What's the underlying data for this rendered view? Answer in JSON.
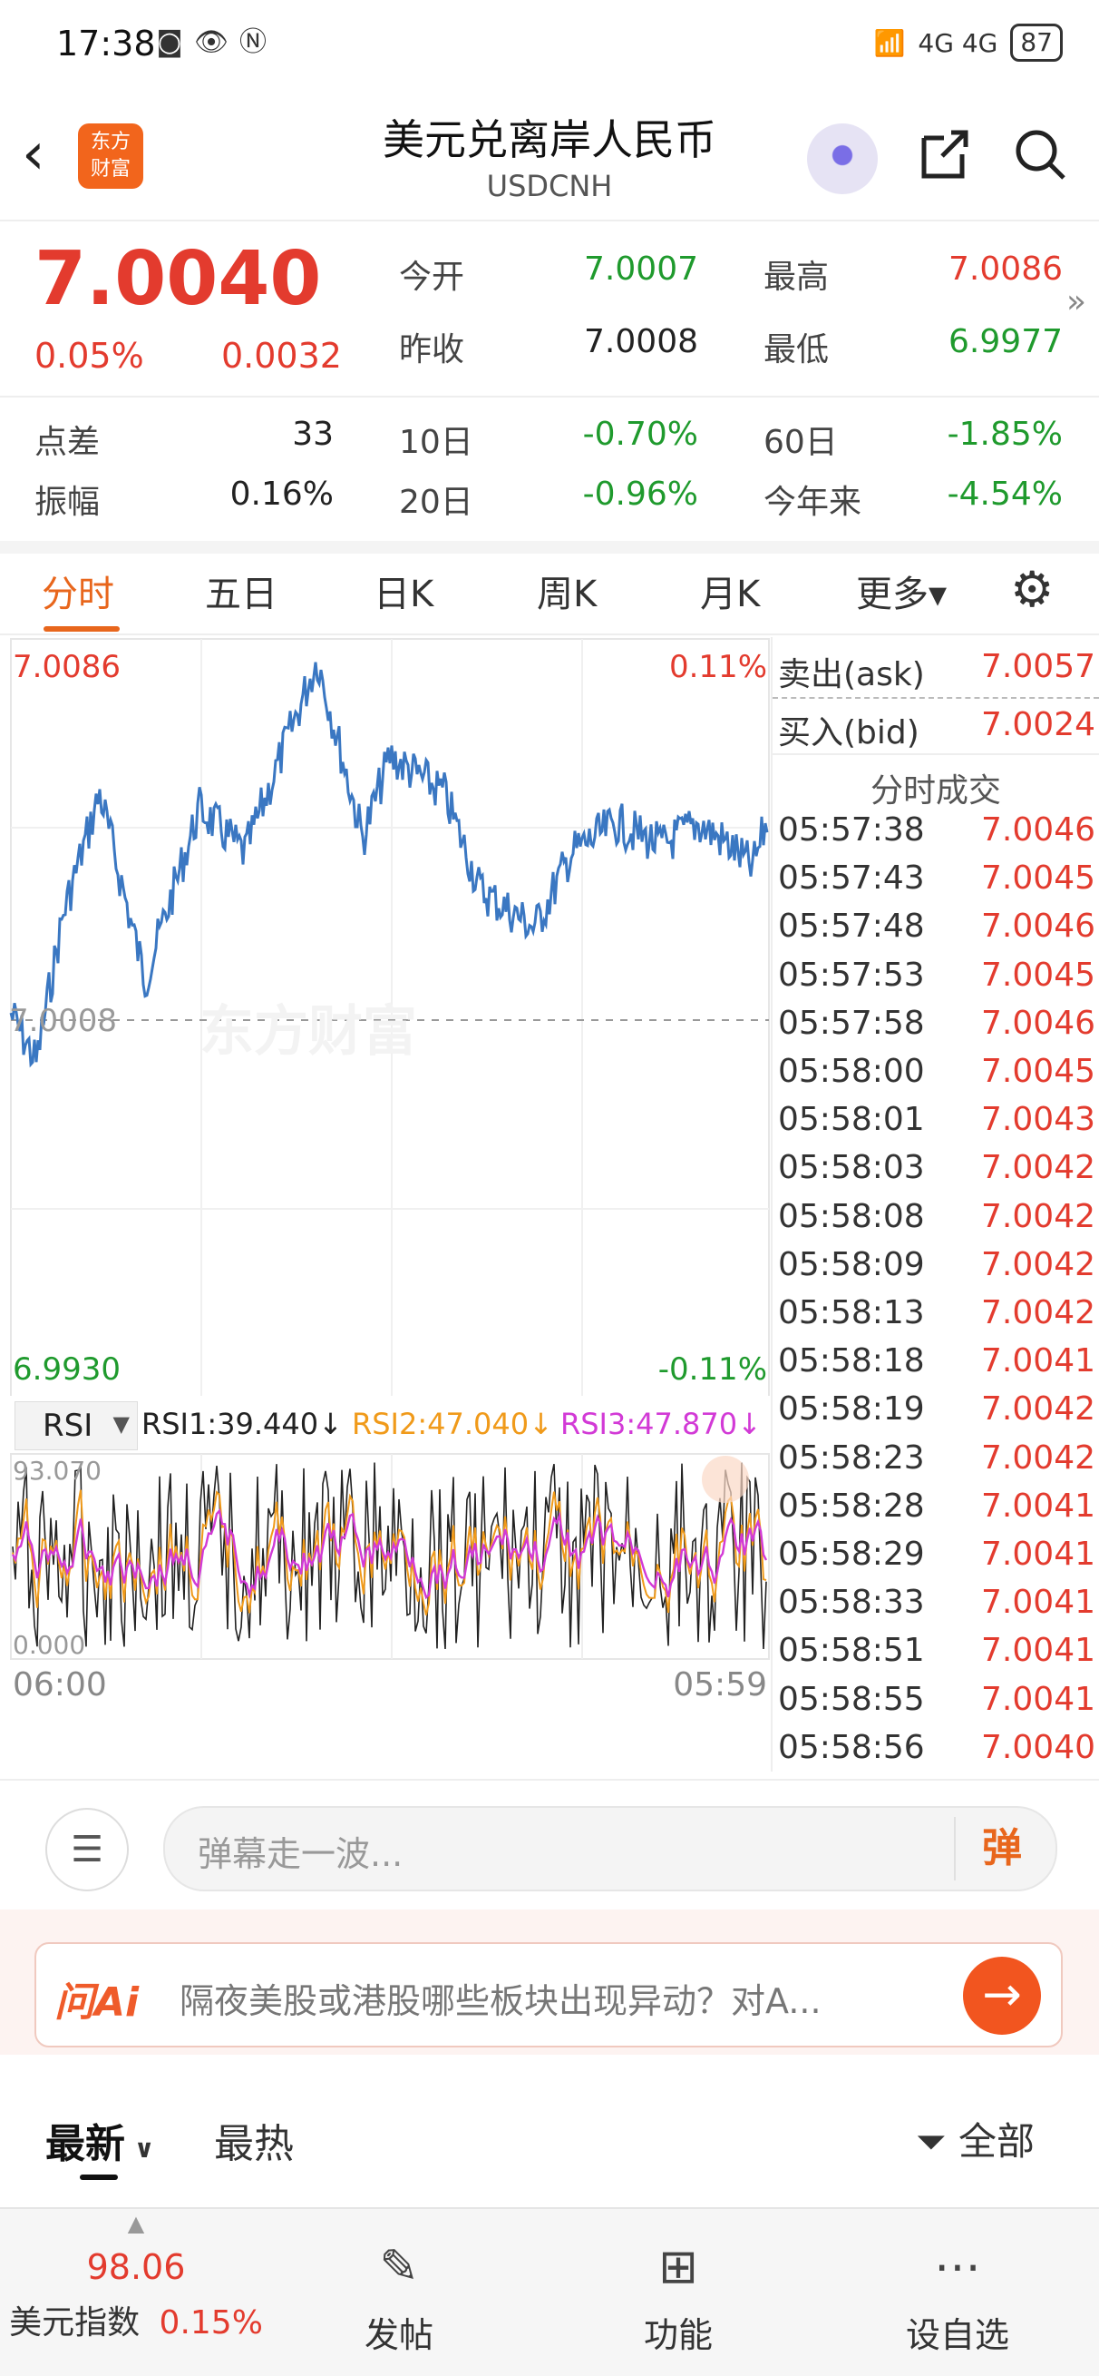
{
  "status_bar": {
    "time": "17:38",
    "battery": "87",
    "signal_text": "4G 4G"
  },
  "header": {
    "title": "美元兑离岸人民币",
    "subtitle": "USDCNH",
    "logo_text_line1": "东方",
    "logo_text_line2": "财富"
  },
  "quote": {
    "price": "7.0040",
    "change_pct": "0.05%",
    "change": "0.0032",
    "open_label": "今开",
    "open": "7.0007",
    "high_label": "最高",
    "high": "7.0086",
    "prev_close_label": "昨收",
    "prev_close": "7.0008",
    "low_label": "最低",
    "low": "6.9977"
  },
  "stats": {
    "spread_label": "点差",
    "spread": "33",
    "d10_label": "10日",
    "d10": "-0.70%",
    "d60_label": "60日",
    "d60": "-1.85%",
    "amp_label": "振幅",
    "amp": "0.16%",
    "d20_label": "20日",
    "d20": "-0.96%",
    "ytd_label": "今年来",
    "ytd": "-4.54%"
  },
  "tabs": [
    "分时",
    "五日",
    "日K",
    "周K",
    "月K",
    "更多▾"
  ],
  "chart": {
    "high_label": "7.0086",
    "high_pct": "0.11%",
    "mid_label": "7.0008",
    "low_label": "6.9930",
    "low_pct": "-0.11%",
    "watermark": "东方财富",
    "indicator": "RSI",
    "rsi1": "RSI1:39.440↓",
    "rsi2": "RSI2:47.040↓",
    "rsi3": "RSI3:47.870↓",
    "rsi_max": "93.070",
    "rsi_min": "0.000",
    "start_time": "06:00",
    "end_time": "05:59",
    "colors": {
      "price": "#3a77c2",
      "rsi1": "#222222",
      "rsi2": "#f09a1a",
      "rsi3": "#d23ad6"
    }
  },
  "orderbook": {
    "ask_label": "卖出(ask)",
    "ask": "7.0057",
    "bid_label": "买入(bid)",
    "bid": "7.0024",
    "trades_title": "分时成交",
    "trades": [
      {
        "time": "05:57:38",
        "price": "7.0046"
      },
      {
        "time": "05:57:43",
        "price": "7.0045"
      },
      {
        "time": "05:57:48",
        "price": "7.0046"
      },
      {
        "time": "05:57:53",
        "price": "7.0045"
      },
      {
        "time": "05:57:58",
        "price": "7.0046"
      },
      {
        "time": "05:58:00",
        "price": "7.0045"
      },
      {
        "time": "05:58:01",
        "price": "7.0043"
      },
      {
        "time": "05:58:03",
        "price": "7.0042"
      },
      {
        "time": "05:58:08",
        "price": "7.0042"
      },
      {
        "time": "05:58:09",
        "price": "7.0042"
      },
      {
        "time": "05:58:13",
        "price": "7.0042"
      },
      {
        "time": "05:58:18",
        "price": "7.0041"
      },
      {
        "time": "05:58:19",
        "price": "7.0042"
      },
      {
        "time": "05:58:23",
        "price": "7.0042"
      },
      {
        "time": "05:58:28",
        "price": "7.0041"
      },
      {
        "time": "05:58:29",
        "price": "7.0041"
      },
      {
        "time": "05:58:33",
        "price": "7.0041"
      },
      {
        "time": "05:58:51",
        "price": "7.0041"
      },
      {
        "time": "05:58:55",
        "price": "7.0041"
      },
      {
        "time": "05:58:56",
        "price": "7.0040"
      }
    ]
  },
  "danmu": {
    "placeholder": "弹幕走一波...",
    "send": "弹"
  },
  "ai": {
    "logo": "问Ai",
    "prompt": "隔夜美股或港股哪些板块出现异动？对A..."
  },
  "feed": {
    "latest": "最新",
    "hot": "最热",
    "filter": "全部"
  },
  "nav": {
    "index_value": "98.06",
    "index_name": "美元指数",
    "index_change": "0.15%",
    "post": "发帖",
    "func": "功能",
    "watch": "设自选"
  }
}
